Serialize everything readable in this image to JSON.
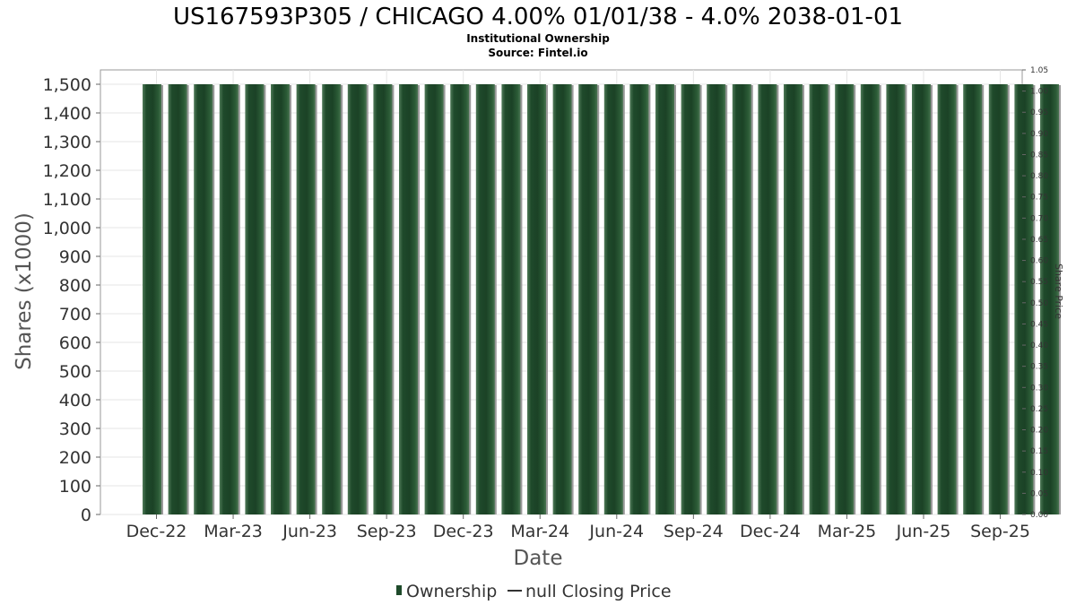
{
  "title": "US167593P305 / CHICAGO 4.00% 01/01/38 - 4.0% 2038-01-01",
  "subtitle": "Institutional Ownership",
  "source": "Source: Fintel.io",
  "chart_data": {
    "type": "bar",
    "title": "US167593P305 / CHICAGO 4.00% 01/01/38 - 4.0% 2038-01-01",
    "xlabel": "Date",
    "ylabel": "Shares (x1000)",
    "y2label": "Share Price",
    "ylim": [
      0,
      1550
    ],
    "y2lim": [
      0,
      1.05
    ],
    "grid": true,
    "legend_position": "bottom",
    "x_tick_labels": [
      "Dec-22",
      "Mar-23",
      "Jun-23",
      "Sep-23",
      "Dec-23",
      "Mar-24",
      "Jun-24",
      "Sep-24",
      "Dec-24",
      "Mar-25",
      "Jun-25",
      "Sep-25"
    ],
    "y_tick_labels": [
      "0",
      "100",
      "200",
      "300",
      "400",
      "500",
      "600",
      "700",
      "800",
      "900",
      "1,000",
      "1,100",
      "1,200",
      "1,300",
      "1,400",
      "1,500"
    ],
    "y2_tick_labels": [
      "0.00",
      "0.05",
      "0.10",
      "0.15",
      "0.20",
      "0.25",
      "0.30",
      "0.35",
      "0.40",
      "0.45",
      "0.50",
      "0.55",
      "0.60",
      "0.65",
      "0.70",
      "0.75",
      "0.80",
      "0.85",
      "0.90",
      "0.95",
      "1.00",
      "1.05"
    ],
    "series": [
      {
        "name": "Ownership",
        "color": "#1e4a2a",
        "values": [
          1500,
          1500,
          1500,
          1500,
          1500,
          1500,
          1500,
          1500,
          1500,
          1500,
          1500,
          1500,
          1500,
          1500,
          1500,
          1500,
          1500,
          1500,
          1500,
          1500,
          1500,
          1500,
          1500,
          1500,
          1500,
          1500,
          1500,
          1500,
          1500,
          1500,
          1500,
          1500,
          1500,
          1500,
          1500,
          1500
        ]
      },
      {
        "name": "null Closing Price",
        "color": "#333333",
        "values": []
      }
    ]
  },
  "legend": {
    "ownership_label": "Ownership",
    "price_label": "null Closing Price"
  }
}
